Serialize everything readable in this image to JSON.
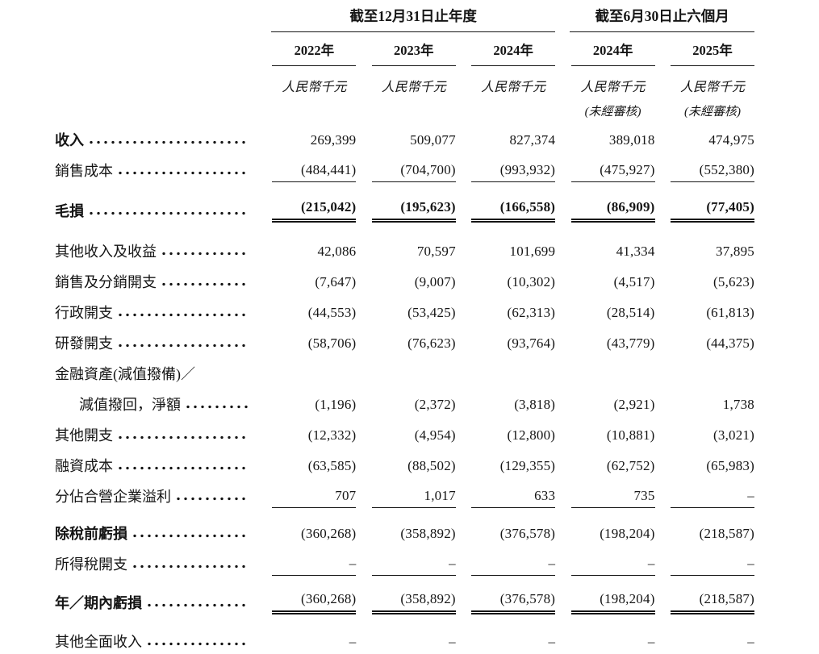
{
  "table": {
    "groups": [
      {
        "label": "截至12月31日止年度",
        "span": 3
      },
      {
        "label": "截至6月30日止六個月",
        "span": 2
      }
    ],
    "columns": [
      {
        "year": "2022年",
        "unit": "人民幣千元",
        "note": ""
      },
      {
        "year": "2023年",
        "unit": "人民幣千元",
        "note": ""
      },
      {
        "year": "2024年",
        "unit": "人民幣千元",
        "note": ""
      },
      {
        "year": "2024年",
        "unit": "人民幣千元",
        "note": "(未經審核)"
      },
      {
        "year": "2025年",
        "unit": "人民幣千元",
        "note": "(未經審核)"
      }
    ],
    "rows": [
      {
        "label": "收入",
        "values": [
          "269,399",
          "509,077",
          "827,374",
          "389,018",
          "474,975"
        ]
      },
      {
        "label": "銷售成本",
        "values": [
          "(484,441)",
          "(704,700)",
          "(993,932)",
          "(475,927)",
          "(552,380)"
        ]
      },
      {
        "label": "毛損",
        "values": [
          "(215,042)",
          "(195,623)",
          "(166,558)",
          "(86,909)",
          "(77,405)"
        ]
      },
      {
        "label": "其他收入及收益",
        "values": [
          "42,086",
          "70,597",
          "101,699",
          "41,334",
          "37,895"
        ]
      },
      {
        "label": "銷售及分銷開支",
        "values": [
          "(7,647)",
          "(9,007)",
          "(10,302)",
          "(4,517)",
          "(5,623)"
        ]
      },
      {
        "label": "行政開支",
        "values": [
          "(44,553)",
          "(53,425)",
          "(62,313)",
          "(28,514)",
          "(61,813)"
        ]
      },
      {
        "label": "研發開支",
        "values": [
          "(58,706)",
          "(76,623)",
          "(93,764)",
          "(43,779)",
          "(44,375)"
        ]
      },
      {
        "label": "金融資產(減值撥備)／",
        "values": [
          "",
          "",
          "",
          "",
          ""
        ]
      },
      {
        "label": "減值撥回，淨額",
        "values": [
          "(1,196)",
          "(2,372)",
          "(3,818)",
          "(2,921)",
          "1,738"
        ]
      },
      {
        "label": "其他開支",
        "values": [
          "(12,332)",
          "(4,954)",
          "(12,800)",
          "(10,881)",
          "(3,021)"
        ]
      },
      {
        "label": "融資成本",
        "values": [
          "(63,585)",
          "(88,502)",
          "(129,355)",
          "(62,752)",
          "(65,983)"
        ]
      },
      {
        "label": "分佔合營企業溢利",
        "values": [
          "707",
          "1,017",
          "633",
          "735",
          "–"
        ]
      },
      {
        "label": "除稅前虧損",
        "values": [
          "(360,268)",
          "(358,892)",
          "(376,578)",
          "(198,204)",
          "(218,587)"
        ]
      },
      {
        "label": "所得稅開支",
        "values": [
          "–",
          "–",
          "–",
          "–",
          "–"
        ]
      },
      {
        "label": "年／期內虧損",
        "values": [
          "(360,268)",
          "(358,892)",
          "(376,578)",
          "(198,204)",
          "(218,587)"
        ]
      },
      {
        "label": "其他全面收入",
        "values": [
          "–",
          "–",
          "–",
          "–",
          "–"
        ]
      }
    ]
  }
}
